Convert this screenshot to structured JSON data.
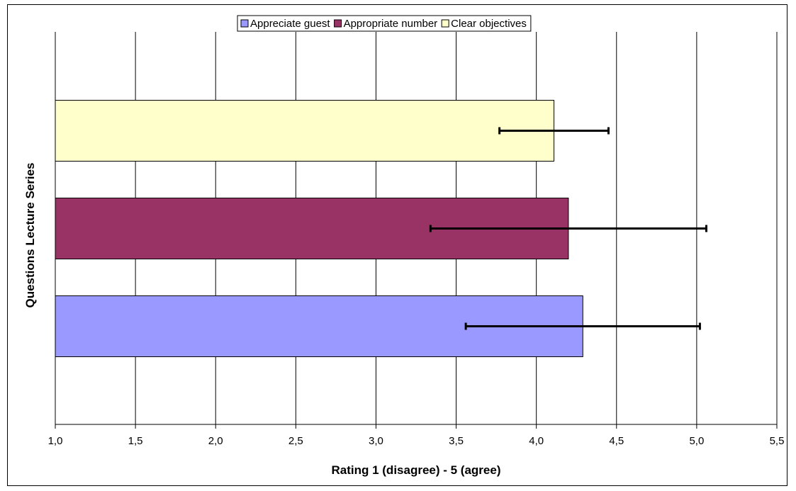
{
  "chart_data": {
    "type": "bar",
    "orientation": "horizontal",
    "title": "",
    "xlabel": "Rating 1 (disagree) - 5 (agree)",
    "ylabel": "Questions Lecture Series",
    "xlim": [
      1.0,
      5.5
    ],
    "x_ticks": [
      "1,0",
      "1,5",
      "2,0",
      "2,5",
      "3,0",
      "3,5",
      "4,0",
      "4,5",
      "5,0",
      "5,5"
    ],
    "x_tick_values": [
      1.0,
      1.5,
      2.0,
      2.5,
      3.0,
      3.5,
      4.0,
      4.5,
      5.0,
      5.5
    ],
    "grid": true,
    "legend_position": "top-center",
    "series": [
      {
        "name": "Appreciate guest",
        "value": 4.29,
        "error": 0.73,
        "color": "#9999ff"
      },
      {
        "name": "Appropriate number",
        "value": 4.2,
        "error": 0.86,
        "color": "#993366"
      },
      {
        "name": "Clear objectives",
        "value": 4.11,
        "error": 0.34,
        "color": "#ffffcc"
      }
    ]
  }
}
